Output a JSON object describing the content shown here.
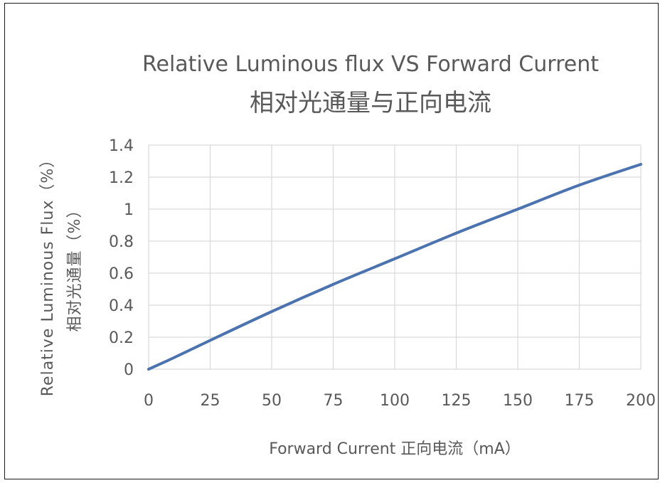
{
  "chart_data": {
    "type": "line",
    "title": "Relative Luminous flux VS Forward Current",
    "subtitle": "相对光通量与正向电流",
    "xlabel": "Forward Current 正向电流（mA）",
    "ylabel_line1": "Relative Luminous Flux（%）",
    "ylabel_line2": "相对光通量（%）",
    "xlim": [
      0,
      200
    ],
    "ylim": [
      0,
      1.4
    ],
    "x_ticks": [
      "0",
      "25",
      "50",
      "75",
      "100",
      "125",
      "150",
      "175",
      "200"
    ],
    "y_ticks": [
      "0",
      "0.2",
      "0.4",
      "0.6",
      "0.8",
      "1",
      "1.2",
      "1.4"
    ],
    "grid": true,
    "series": [
      {
        "color": "#4a73b0",
        "x": [
          0,
          10,
          25,
          50,
          75,
          100,
          125,
          150,
          175,
          200
        ],
        "y": [
          0,
          0.07,
          0.18,
          0.36,
          0.53,
          0.69,
          0.85,
          1.0,
          1.15,
          1.28
        ]
      }
    ]
  }
}
